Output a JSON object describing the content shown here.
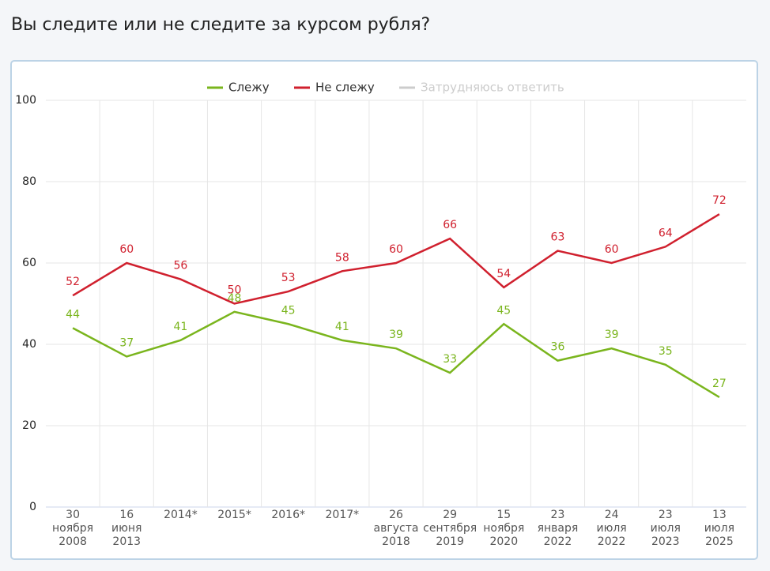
{
  "chart_data": {
    "type": "line",
    "title": "Вы следите или не следите за курсом рубля?",
    "categories": [
      "30\nноября\n2008",
      "16\nиюня\n2013",
      "2014*",
      "2015*",
      "2016*",
      "2017*",
      "26\nавгуста\n2018",
      "29\nсентября\n2019",
      "15\nноября\n2020",
      "23\nянваря\n2022",
      "24\nиюля\n2022",
      "23\nиюля\n2023",
      "13\nиюля\n2025"
    ],
    "series": [
      {
        "name": "Слежу",
        "color": "#7ab51d",
        "values": [
          44,
          37,
          41,
          48,
          45,
          41,
          39,
          33,
          45,
          36,
          39,
          35,
          27
        ]
      },
      {
        "name": "Не слежу",
        "color": "#d0202e",
        "values": [
          52,
          60,
          56,
          50,
          53,
          58,
          60,
          66,
          54,
          63,
          60,
          64,
          72
        ]
      },
      {
        "name": "Затрудняюсь ответить",
        "color": "#cccccc",
        "visible": false,
        "values": [
          null,
          null,
          null,
          null,
          null,
          null,
          null,
          null,
          null,
          null,
          null,
          null,
          null
        ]
      }
    ],
    "ylim": [
      0,
      100
    ],
    "yticks": [
      0,
      20,
      40,
      60,
      80,
      100
    ],
    "grid": true,
    "legend": "top"
  }
}
